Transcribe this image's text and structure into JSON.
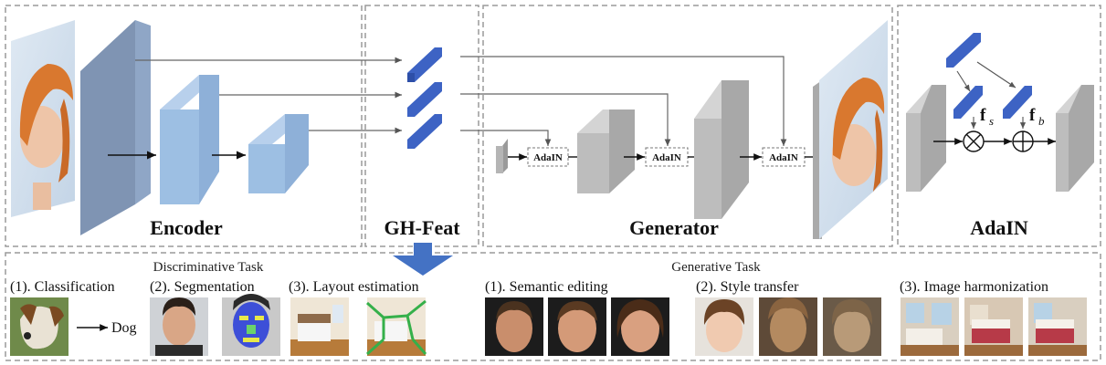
{
  "top": {
    "encoder_label": "Encoder",
    "ghfeat_label": "GH-Feat",
    "generator_label": "Generator",
    "adain_title": "AdaIN",
    "adain_block_label": "AdaIN",
    "fs_main": "f",
    "fs_sub": "s",
    "fb_main": "f",
    "fb_sub": "b"
  },
  "bottom": {
    "discriminative_title": "Discriminative Task",
    "generative_title": "Generative Task",
    "classification": "(1). Classification",
    "dog": "Dog",
    "segmentation": "(2). Segmentation",
    "layout": "(3). Layout estimation",
    "semantic_editing": "(1). Semantic editing",
    "style_transfer": "(2). Style transfer",
    "harmonization": "(3).  Image harmonization"
  },
  "colors": {
    "encoder_blue": "#9dbfe3",
    "encoder_slate": "#7f94b3",
    "feat_blue": "#3d63c4",
    "gen_gray": "#bdbdbd",
    "arrow_blue": "#4472c4"
  }
}
